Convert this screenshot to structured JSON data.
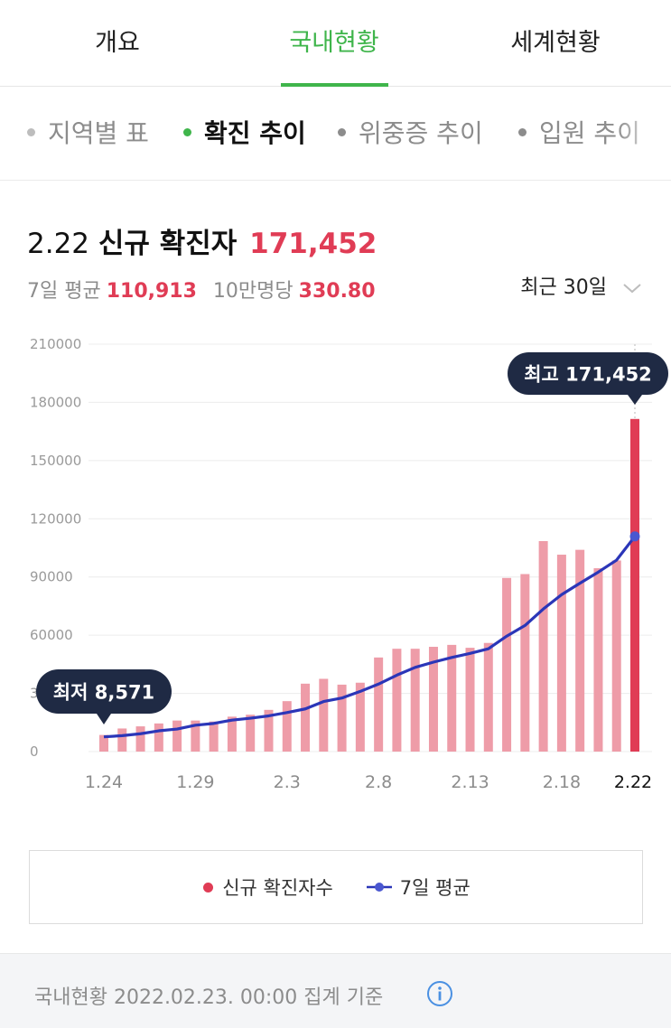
{
  "tabs": [
    {
      "label": "개요",
      "active": false
    },
    {
      "label": "국내현황",
      "active": true
    },
    {
      "label": "세계현황",
      "active": false
    }
  ],
  "subtabs": [
    {
      "label": "지역별 표",
      "active": false
    },
    {
      "label": "확진 추이",
      "active": true
    },
    {
      "label": "위중증 추이",
      "active": false
    },
    {
      "label": "입원 추이",
      "active": false
    }
  ],
  "summary": {
    "date": "2.22",
    "title": "신규 확진자",
    "count": "171,452",
    "avg_label": "7일 평균",
    "avg_value": "110,913",
    "per_label": "10만명당",
    "per_value": "330.80",
    "period": "최근 30일"
  },
  "chart_data": {
    "type": "bar",
    "categories": [
      "1.24",
      "1.25",
      "1.26",
      "1.27",
      "1.28",
      "1.29",
      "1.30",
      "1.31",
      "2.1",
      "2.2",
      "2.3",
      "2.4",
      "2.5",
      "2.6",
      "2.7",
      "2.8",
      "2.9",
      "2.10",
      "2.11",
      "2.12",
      "2.13",
      "2.14",
      "2.15",
      "2.16",
      "2.17",
      "2.18",
      "2.19",
      "2.20",
      "2.21",
      "2.22"
    ],
    "x_tick_labels": [
      "1.24",
      "1.29",
      "2.3",
      "2.8",
      "2.13",
      "2.18",
      "2.22"
    ],
    "y_ticks": [
      0,
      30000,
      60000,
      90000,
      120000,
      150000,
      180000,
      210000
    ],
    "ylim": [
      0,
      210000
    ],
    "series": [
      {
        "name": "신규 확진자수",
        "type": "bar",
        "values": [
          8571,
          11900,
          13000,
          14500,
          16000,
          16000,
          15500,
          18000,
          19000,
          21500,
          26000,
          35000,
          37500,
          34500,
          35500,
          48500,
          53000,
          53000,
          54000,
          55000,
          53500,
          56000,
          89500,
          91500,
          108500,
          101500,
          104000,
          94500,
          98500,
          171452
        ]
      },
      {
        "name": "7일 평균",
        "type": "line",
        "values": [
          7600,
          8200,
          9200,
          10700,
          11600,
          13600,
          14500,
          16200,
          17200,
          18400,
          20100,
          22000,
          25800,
          27600,
          31000,
          34800,
          39400,
          43400,
          46100,
          48500,
          50600,
          53000,
          59500,
          65000,
          73500,
          80900,
          86800,
          92500,
          98700,
          110913
        ]
      }
    ],
    "annotations": [
      {
        "label": "최고 171,452"
      },
      {
        "label": "최저 8,571"
      }
    ],
    "grid": true,
    "legend_placement": "bottom"
  },
  "colors": {
    "accent_green": "#3fb54b",
    "bar": "#ee9ca8",
    "bar_highlight": "#e03c55",
    "avg_line": "#2b36b8",
    "tooltip_bg": "#1f2a44"
  },
  "legend": {
    "bar_label": "신규 확진자수",
    "line_label": "7일 평균"
  },
  "footer": {
    "text": "국내현황 2022.02.23. 00:00 집계 기준",
    "icon": "info-icon"
  }
}
